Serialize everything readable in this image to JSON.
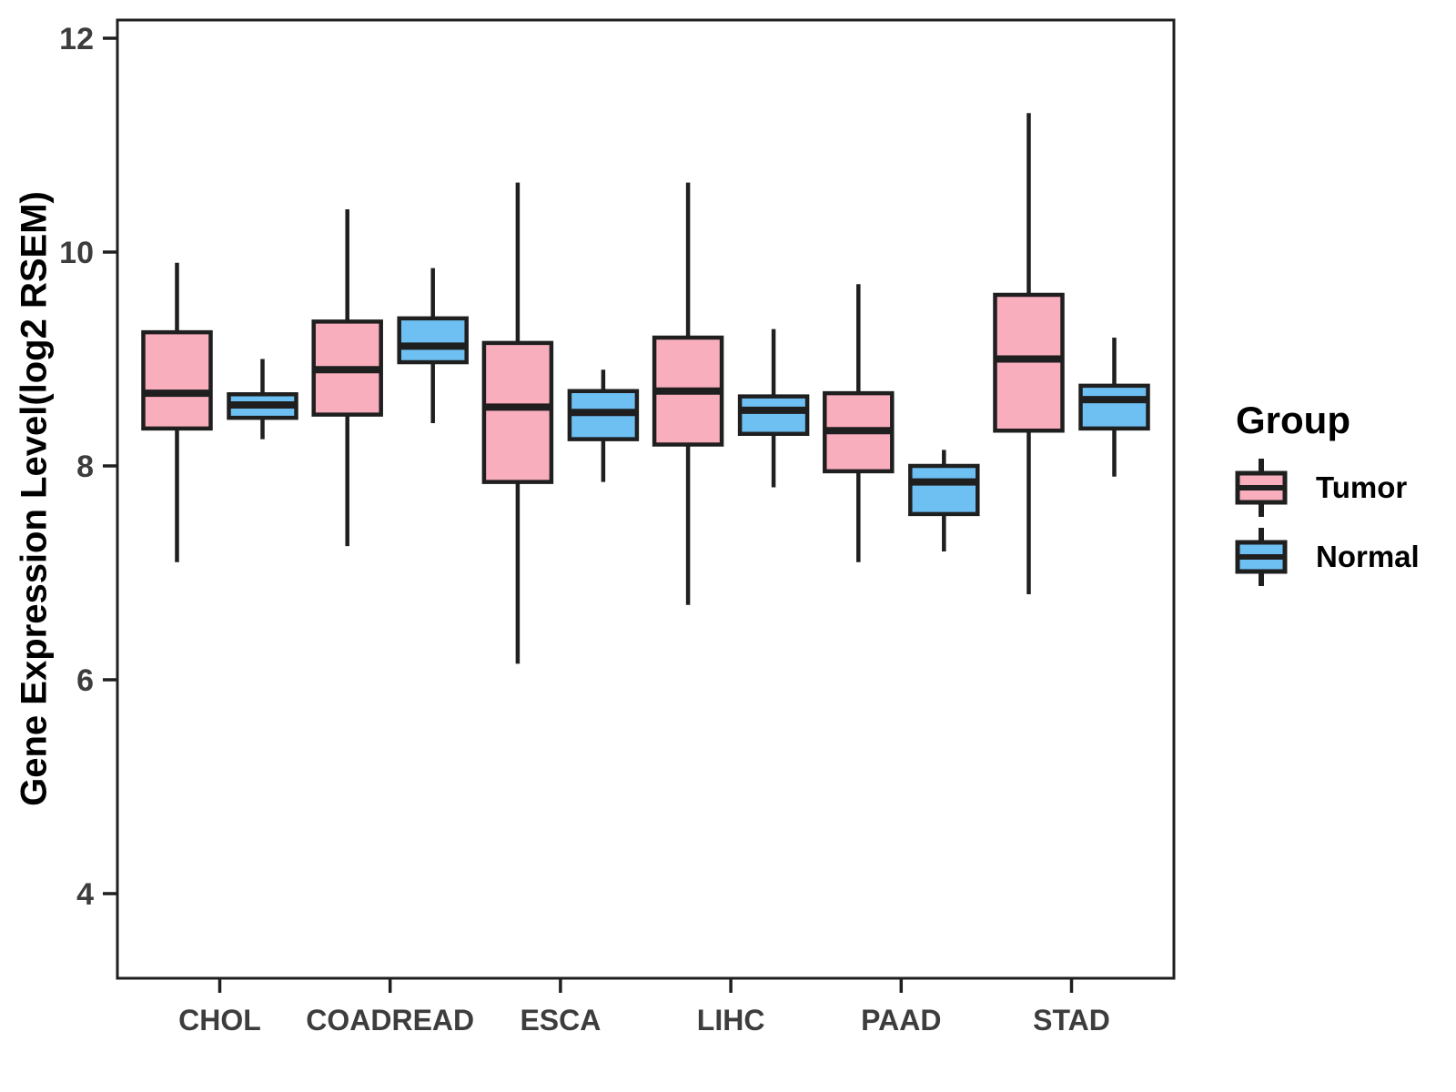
{
  "figure": {
    "background": "#FFFFFF"
  },
  "chart_data": {
    "type": "grouped_boxplot",
    "title": "",
    "xlabel": "",
    "ylabel": "Gene Expression Level(log2 RSEM)",
    "categories": [
      "CHOL",
      "COADREAD",
      "ESCA",
      "LIHC",
      "PAAD",
      "STAD"
    ],
    "y_ticks": [
      4,
      6,
      8,
      10,
      12
    ],
    "ylim": [
      3.2,
      12.2
    ],
    "grid": false,
    "legend": {
      "title": "Group",
      "position": "right"
    },
    "series": [
      {
        "name": "Tumor",
        "color": "#F9AEBE",
        "boxes": [
          {
            "category": "CHOL",
            "min": 7.1,
            "q1": 8.35,
            "median": 8.68,
            "q3": 9.25,
            "max": 9.9
          },
          {
            "category": "COADREAD",
            "min": 7.25,
            "q1": 8.48,
            "median": 8.9,
            "q3": 9.35,
            "max": 10.4
          },
          {
            "category": "ESCA",
            "min": 6.15,
            "q1": 7.85,
            "median": 8.55,
            "q3": 9.15,
            "max": 10.65
          },
          {
            "category": "LIHC",
            "min": 6.7,
            "q1": 8.2,
            "median": 8.7,
            "q3": 9.2,
            "max": 10.65
          },
          {
            "category": "PAAD",
            "min": 7.1,
            "q1": 7.95,
            "median": 8.33,
            "q3": 8.68,
            "max": 9.7
          },
          {
            "category": "STAD",
            "min": 6.8,
            "q1": 8.33,
            "median": 9.0,
            "q3": 9.6,
            "max": 11.3
          }
        ]
      },
      {
        "name": "Normal",
        "color": "#6EBFF2",
        "boxes": [
          {
            "category": "CHOL",
            "min": 8.25,
            "q1": 8.45,
            "median": 8.57,
            "q3": 8.67,
            "max": 9.0
          },
          {
            "category": "COADREAD",
            "min": 8.4,
            "q1": 8.97,
            "median": 9.12,
            "q3": 9.38,
            "max": 9.85
          },
          {
            "category": "ESCA",
            "min": 7.85,
            "q1": 8.25,
            "median": 8.5,
            "q3": 8.7,
            "max": 8.9
          },
          {
            "category": "LIHC",
            "min": 7.8,
            "q1": 8.3,
            "median": 8.52,
            "q3": 8.65,
            "max": 9.28
          },
          {
            "category": "PAAD",
            "min": 7.2,
            "q1": 7.55,
            "median": 7.85,
            "q3": 8.0,
            "max": 8.15
          },
          {
            "category": "STAD",
            "min": 7.9,
            "q1": 8.35,
            "median": 8.62,
            "q3": 8.75,
            "max": 9.2
          }
        ]
      }
    ],
    "colors": {
      "box_stroke": "#1F1F1F",
      "axis_line": "#1F1F1F",
      "tick_text": "#3D3D3D",
      "title_text": "#000000"
    }
  }
}
